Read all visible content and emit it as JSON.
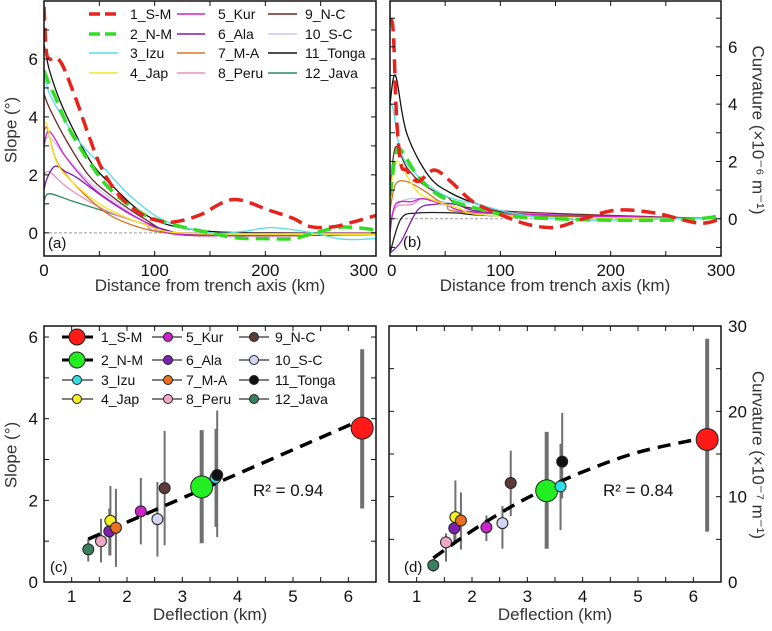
{
  "chart_data": [
    {
      "type": "line",
      "panel_label": "(a)",
      "xlabel": "Distance from trench axis (km)",
      "ylabel": "Slope (°)",
      "xlim": [
        0,
        300
      ],
      "ylim": [
        -0.8,
        8
      ],
      "xticks": [
        0,
        100,
        200,
        300
      ],
      "yticks": [
        0,
        2,
        4,
        6
      ],
      "grid": false,
      "reference_line_y": 0,
      "legend_position": "top",
      "series": [
        {
          "name": "1_S-M",
          "color": "#e8221c",
          "style": "dashed",
          "x": [
            0,
            2,
            5,
            10,
            15,
            20,
            30,
            40,
            50,
            60,
            70,
            80,
            90,
            100,
            116,
            140,
            171,
            204,
            225,
            240,
            260,
            280,
            300
          ],
          "y": [
            7.8,
            6.3,
            6.0,
            6.05,
            5.9,
            5.5,
            4.5,
            3.4,
            2.4,
            1.7,
            1.2,
            0.85,
            0.6,
            0.45,
            0.37,
            0.6,
            1.15,
            0.77,
            0.5,
            0.22,
            0.2,
            0.38,
            0.6
          ]
        },
        {
          "name": "2_N-M",
          "color": "#33dd22",
          "style": "dashed",
          "x": [
            0,
            5,
            10,
            20,
            30,
            40,
            55,
            75,
            95,
            120,
            150,
            175,
            200,
            225,
            245,
            270,
            300
          ],
          "y": [
            5.6,
            5.1,
            4.7,
            3.8,
            3.1,
            2.5,
            1.7,
            1.0,
            0.55,
            0.25,
            0,
            -0.18,
            -0.2,
            -0.2,
            0,
            0.2,
            0.1
          ]
        },
        {
          "name": "3_Izu",
          "color": "#55dde8",
          "style": "solid",
          "x": [
            0,
            5,
            15,
            25,
            35,
            55,
            80,
            110,
            150,
            180,
            205,
            240,
            270,
            300
          ],
          "y": [
            5.4,
            4.8,
            4.1,
            3.5,
            3.0,
            2.2,
            1.2,
            0.4,
            0,
            0.05,
            0.18,
            0.02,
            -0.22,
            -0.2
          ]
        },
        {
          "name": "4_Jap",
          "color": "#f5e61e",
          "style": "solid",
          "x": [
            0,
            3,
            8,
            15,
            30,
            50,
            70,
            90,
            120,
            200,
            300
          ],
          "y": [
            3.8,
            3.7,
            2.8,
            2.2,
            1.6,
            1.0,
            0.6,
            0.3,
            0,
            -0.05,
            -0.05
          ]
        },
        {
          "name": "5_Kur",
          "color": "#d020d0",
          "style": "solid",
          "x": [
            0,
            5,
            20,
            40,
            60,
            90,
            120,
            200,
            300
          ],
          "y": [
            3.0,
            3.5,
            2.6,
            1.7,
            1.1,
            0.4,
            -0.05,
            -0.1,
            -0.05
          ]
        },
        {
          "name": "6_Ala",
          "color": "#7a1fb0",
          "style": "solid",
          "x": [
            0,
            3,
            10,
            20,
            30,
            55,
            80,
            110,
            150,
            300
          ],
          "y": [
            1.5,
            1.9,
            2.3,
            2.1,
            1.9,
            1.2,
            0.6,
            0.1,
            -0.1,
            -0.05
          ]
        },
        {
          "name": "7_M-A",
          "color": "#e0701e",
          "style": "solid",
          "x": [
            0,
            3,
            10,
            20,
            40,
            60,
            85,
            110,
            150,
            300
          ],
          "y": [
            3.5,
            3.6,
            2.6,
            2.0,
            1.2,
            0.6,
            0.2,
            0,
            -0.1,
            -0.05
          ]
        },
        {
          "name": "8_Peru",
          "color": "#e890c0",
          "style": "solid",
          "x": [
            0,
            5,
            20,
            40,
            60,
            90,
            120,
            300
          ],
          "y": [
            2.0,
            2.1,
            1.6,
            1.1,
            0.7,
            0.3,
            0,
            0
          ]
        },
        {
          "name": "9_N-C",
          "color": "#6b2a25",
          "style": "solid",
          "x": [
            0,
            5,
            20,
            40,
            60,
            90,
            120,
            200,
            300
          ],
          "y": [
            4.8,
            4.3,
            3.2,
            2.0,
            1.3,
            0.5,
            0,
            -0.1,
            -0.05
          ]
        },
        {
          "name": "10_S-C",
          "color": "#c8c8f0",
          "style": "solid",
          "x": [
            0,
            5,
            20,
            40,
            60,
            90,
            120,
            300
          ],
          "y": [
            3.0,
            3.3,
            2.6,
            1.8,
            1.2,
            0.4,
            0,
            -0.05
          ]
        },
        {
          "name": "11_Tonga",
          "color": "#111111",
          "style": "solid",
          "x": [
            0,
            5,
            15,
            30,
            45,
            65,
            85,
            110,
            150,
            200,
            300
          ],
          "y": [
            6.5,
            5.6,
            4.5,
            3.3,
            2.3,
            1.5,
            0.8,
            0.3,
            0.05,
            0,
            0
          ]
        },
        {
          "name": "12_Java",
          "color": "#2e8a5a",
          "style": "solid",
          "x": [
            0,
            5,
            25,
            50,
            70,
            100,
            120,
            300
          ],
          "y": [
            1.1,
            1.35,
            1.1,
            0.8,
            0.55,
            0.2,
            0,
            0
          ]
        }
      ]
    },
    {
      "type": "line",
      "panel_label": "(b)",
      "xlabel": "Distance from trench axis (km)",
      "ylabel": "Curvature (×10⁻⁶ m⁻¹)",
      "xlim": [
        0,
        300
      ],
      "ylim": [
        -1.3,
        7.6
      ],
      "xticks": [
        0,
        100,
        200,
        300
      ],
      "yticks": [
        0,
        2,
        4,
        6
      ],
      "grid": false,
      "reference_line_y": 0,
      "series": [
        {
          "name": "1_S-M",
          "color": "#e8221c",
          "style": "dashed",
          "x": [
            0,
            3,
            6,
            10,
            15,
            25,
            40,
            55,
            75,
            100,
            125,
            150,
            175,
            205,
            240,
            280,
            300
          ],
          "y": [
            7.0,
            6.5,
            3.5,
            1.9,
            1.7,
            1.3,
            1.7,
            1.3,
            0.6,
            0.15,
            -0.2,
            -0.3,
            0,
            0.3,
            0.2,
            -0.15,
            0
          ]
        },
        {
          "name": "2_N-M",
          "color": "#33dd22",
          "style": "dashed",
          "x": [
            0,
            5,
            10,
            25,
            45,
            75,
            110,
            150,
            200,
            250,
            280,
            300
          ],
          "y": [
            0.8,
            2.2,
            2.4,
            1.5,
            0.8,
            0.4,
            0.1,
            0,
            -0.05,
            -0.05,
            0,
            0.1
          ]
        },
        {
          "name": "3_Izu",
          "color": "#55dde8",
          "style": "solid",
          "x": [
            0,
            3,
            10,
            25,
            50,
            80,
            110,
            150,
            200,
            250,
            300
          ],
          "y": [
            4.0,
            3.8,
            2.3,
            1.5,
            0.8,
            0.5,
            0.2,
            0,
            -0.05,
            0,
            0
          ]
        },
        {
          "name": "4_Jap",
          "color": "#f5e61e",
          "style": "solid",
          "x": [
            0,
            5,
            20,
            30,
            60,
            100,
            300
          ],
          "y": [
            0.5,
            2.0,
            1.2,
            0.8,
            0.4,
            0.1,
            0
          ]
        },
        {
          "name": "5_Kur",
          "color": "#d020d0",
          "style": "solid",
          "x": [
            0,
            5,
            20,
            30,
            50,
            90,
            300
          ],
          "y": [
            -0.5,
            0.5,
            0.6,
            0.7,
            0.5,
            0.2,
            0
          ]
        },
        {
          "name": "6_Ala",
          "color": "#7a1fb0",
          "style": "solid",
          "x": [
            0,
            10,
            25,
            40,
            60,
            100,
            300
          ],
          "y": [
            -1.2,
            -0.8,
            0.3,
            0.5,
            0.5,
            0.2,
            0
          ]
        },
        {
          "name": "7_M-A",
          "color": "#e0701e",
          "style": "solid",
          "x": [
            0,
            5,
            15,
            30,
            50,
            80,
            300
          ],
          "y": [
            0.3,
            1.2,
            1.3,
            1.0,
            0.5,
            0.2,
            0
          ]
        },
        {
          "name": "8_Peru",
          "color": "#e890c0",
          "style": "solid",
          "x": [
            0,
            5,
            20,
            30,
            50,
            90,
            300
          ],
          "y": [
            -0.3,
            0.4,
            0.5,
            0.7,
            0.5,
            0.2,
            0
          ]
        },
        {
          "name": "9_N-C",
          "color": "#6b2a25",
          "style": "solid",
          "x": [
            0,
            5,
            15,
            30,
            50,
            90,
            300
          ],
          "y": [
            1.0,
            2.5,
            1.8,
            1.2,
            0.8,
            0.3,
            0
          ]
        },
        {
          "name": "10_S-C",
          "color": "#c8c8f0",
          "style": "solid",
          "x": [
            0,
            10,
            30,
            60,
            100,
            300
          ],
          "y": [
            0,
            0.6,
            0.7,
            0.5,
            0.2,
            0
          ]
        },
        {
          "name": "11_Tonga",
          "color": "#111111",
          "style": "solid",
          "x": [
            0,
            5,
            15,
            35,
            55,
            80,
            110,
            200,
            300
          ],
          "y": [
            4.0,
            5.0,
            3.0,
            1.5,
            0.9,
            0.5,
            0.2,
            0.05,
            0
          ]
        },
        {
          "name": "12_Java",
          "color": "#222222",
          "style": "solid",
          "x": [
            0,
            10,
            25,
            60,
            100,
            300
          ],
          "y": [
            -1.2,
            0,
            0.2,
            0.2,
            0.1,
            0
          ]
        }
      ]
    },
    {
      "type": "scatter",
      "panel_label": "(c)",
      "xlabel": "Deflection (km)",
      "ylabel": "Slope (°)",
      "xlim": [
        0.5,
        6.5
      ],
      "ylim": [
        0,
        6.27
      ],
      "xticks": [
        1,
        2,
        3,
        4,
        5,
        6
      ],
      "yticks": [
        0,
        2,
        4,
        6
      ],
      "grid": false,
      "legend_position": "top-left",
      "fit": {
        "label": "R² = 0.94",
        "x": [
          1.3,
          6.2
        ],
        "y": [
          1.05,
          3.95
        ]
      },
      "points": [
        {
          "name": "1_S-M",
          "color": "#ff1a1a",
          "x": 6.25,
          "y": 3.77,
          "err": [
            1.8,
            5.7
          ],
          "size": "large"
        },
        {
          "name": "2_N-M",
          "color": "#22ee22",
          "x": 3.35,
          "y": 2.33,
          "err": [
            0.95,
            3.72
          ],
          "size": "large"
        },
        {
          "name": "3_Izu",
          "color": "#33dde8",
          "x": 3.6,
          "y": 2.55,
          "err": [
            1.35,
            3.75
          ],
          "size": "small"
        },
        {
          "name": "4_Jap",
          "color": "#f5f020",
          "x": 1.7,
          "y": 1.5,
          "err": [
            0.65,
            2.35
          ],
          "size": "small"
        },
        {
          "name": "5_Kur",
          "color": "#cc22cc",
          "x": 2.25,
          "y": 1.73,
          "err": [
            0.92,
            2.55
          ],
          "size": "small"
        },
        {
          "name": "6_Ala",
          "color": "#8020b0",
          "x": 1.68,
          "y": 1.24,
          "err": [
            0.65,
            1.8
          ],
          "size": "small"
        },
        {
          "name": "7_M-A",
          "color": "#e87020",
          "x": 1.8,
          "y": 1.33,
          "err": [
            0.37,
            2.28
          ],
          "size": "small"
        },
        {
          "name": "8_Peru",
          "color": "#f0a8c8",
          "x": 1.53,
          "y": 1.0,
          "err": [
            0.48,
            1.55
          ],
          "size": "small"
        },
        {
          "name": "9_N-C",
          "color": "#5c3b38",
          "x": 2.68,
          "y": 2.3,
          "err": [
            0.9,
            3.7
          ],
          "size": "small"
        },
        {
          "name": "10_S-C",
          "color": "#d4d4f2",
          "x": 2.55,
          "y": 1.54,
          "err": [
            0.62,
            2.45
          ],
          "size": "small"
        },
        {
          "name": "11_Tonga",
          "color": "#111111",
          "x": 3.63,
          "y": 2.62,
          "err": [
            1.1,
            4.2
          ],
          "size": "small"
        },
        {
          "name": "12_Java",
          "color": "#3a8060",
          "x": 1.3,
          "y": 0.8,
          "err": [
            0.5,
            1.05
          ],
          "size": "small"
        }
      ]
    },
    {
      "type": "scatter",
      "panel_label": "(d)",
      "xlabel": "Deflection (km)",
      "ylabel": "Curvature (×10⁻⁷ m⁻¹)",
      "xlim": [
        0.5,
        6.5
      ],
      "ylim": [
        0,
        30
      ],
      "xticks": [
        1,
        2,
        3,
        4,
        5,
        6
      ],
      "yticks": [
        0,
        10,
        20,
        30
      ],
      "grid": false,
      "fit": {
        "label": "R² = 0.84",
        "x": [
          1.3,
          2,
          2.7,
          3.35,
          4,
          5,
          6.2
        ],
        "y": [
          2.8,
          6.0,
          8.8,
          11.0,
          12.9,
          15.2,
          16.9
        ]
      },
      "points": [
        {
          "name": "1_S-M",
          "color": "#ff1a1a",
          "x": 6.25,
          "y": 16.7,
          "err": [
            5.9,
            28.5
          ],
          "size": "large"
        },
        {
          "name": "2_N-M",
          "color": "#22ee22",
          "x": 3.35,
          "y": 10.7,
          "err": [
            3.9,
            17.6
          ],
          "size": "large"
        },
        {
          "name": "3_Izu",
          "color": "#33dde8",
          "x": 3.6,
          "y": 11.2,
          "err": [
            6.1,
            16.2
          ],
          "size": "small"
        },
        {
          "name": "4_Jap",
          "color": "#f5f020",
          "x": 1.7,
          "y": 7.6,
          "err": [
            4.6,
            11.9
          ],
          "size": "small"
        },
        {
          "name": "5_Kur",
          "color": "#cc22cc",
          "x": 2.26,
          "y": 6.4,
          "err": [
            4.8,
            7.8
          ],
          "size": "small"
        },
        {
          "name": "6_Ala",
          "color": "#8020b0",
          "x": 1.68,
          "y": 6.3,
          "err": [
            4.6,
            7.3
          ],
          "size": "small"
        },
        {
          "name": "7_M-A",
          "color": "#e87020",
          "x": 1.8,
          "y": 7.2,
          "err": [
            3.8,
            10.5
          ],
          "size": "small"
        },
        {
          "name": "8_Peru",
          "color": "#f0a8c8",
          "x": 1.53,
          "y": 4.65,
          "err": [
            2.4,
            5.7
          ],
          "size": "small"
        },
        {
          "name": "9_N-C",
          "color": "#5c3b38",
          "x": 2.7,
          "y": 11.6,
          "err": [
            7.7,
            15.4
          ],
          "size": "small"
        },
        {
          "name": "10_S-C",
          "color": "#d4d4f2",
          "x": 2.55,
          "y": 6.9,
          "err": [
            3.9,
            8.9
          ],
          "size": "small"
        },
        {
          "name": "11_Tonga",
          "color": "#111111",
          "x": 3.63,
          "y": 14.1,
          "err": [
            9.8,
            19.8
          ],
          "size": "small"
        },
        {
          "name": "12_Java",
          "color": "#3a8060",
          "x": 1.3,
          "y": 1.96,
          "err": [
            1.2,
            2.7
          ],
          "size": "small"
        }
      ]
    }
  ]
}
